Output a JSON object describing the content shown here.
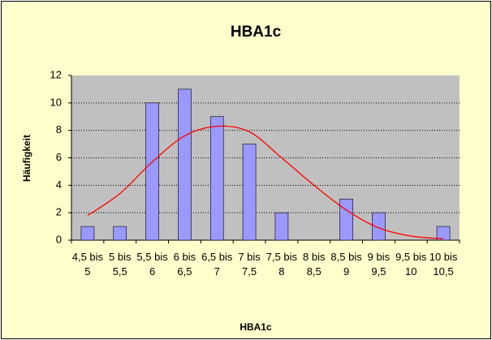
{
  "chart_data": {
    "type": "bar",
    "title": "HBA1c",
    "x_label": "HBA1c",
    "y_label": "Häufigkeit",
    "categories": [
      "4,5 bis 5",
      "5 bis 5,5",
      "5,5 bis 6",
      "6 bis 6,5",
      "6,5 bis 7",
      "7 bis 7,5",
      "7,5 bis 8",
      "8 bis 8,5",
      "8,5 bis 9",
      "9 bis 9,5",
      "9,5 bis 10",
      "10 bis 10,5"
    ],
    "series": [
      {
        "type": "bar",
        "color": "#9999ff",
        "values": [
          1,
          1,
          10,
          11,
          9,
          7,
          2,
          0,
          3,
          2,
          0,
          1
        ]
      },
      {
        "type": "line",
        "color": "#ff0000",
        "values": [
          1.8,
          3.4,
          5.7,
          7.6,
          8.3,
          7.9,
          6.0,
          4.0,
          2.2,
          0.9,
          0.3,
          0.1
        ]
      }
    ],
    "ylim": [
      0,
      12
    ],
    "yticks": [
      0,
      2,
      4,
      6,
      8,
      10,
      12
    ],
    "grid": true
  }
}
